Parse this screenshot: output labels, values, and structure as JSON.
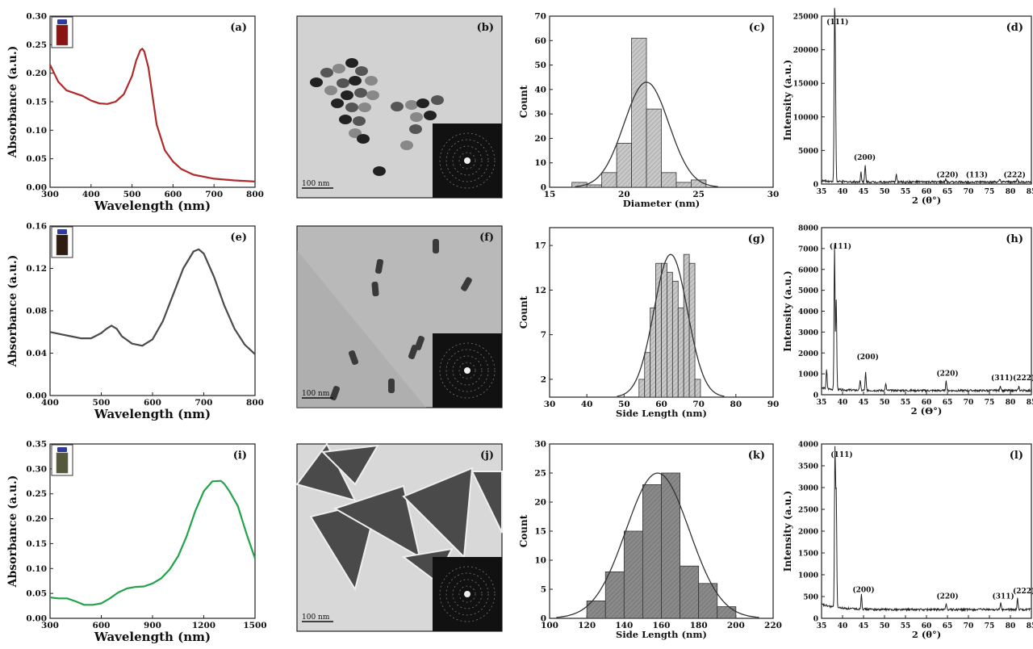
{
  "chart_data": [
    {
      "panel": "(a)",
      "type": "line",
      "color": "#b02a2a",
      "xlabel": "Wavelength (nm)",
      "ylabel": "Absorbance (a.u.)",
      "xlim": [
        300,
        800
      ],
      "ylim": [
        0,
        0.3
      ],
      "xticks": [
        300,
        400,
        500,
        600,
        700,
        800
      ],
      "yticks": [
        0,
        0.05,
        0.1,
        0.15,
        0.2,
        0.25,
        0.3
      ],
      "ytick_labels": [
        "0.00",
        "0.05",
        "0.10",
        "0.15",
        "0.20",
        "0.25",
        "0.30"
      ],
      "inset": "vial-red",
      "x": [
        300,
        320,
        340,
        360,
        380,
        400,
        420,
        440,
        460,
        480,
        500,
        510,
        520,
        525,
        530,
        540,
        550,
        560,
        580,
        600,
        620,
        650,
        700,
        750,
        800
      ],
      "y": [
        0.215,
        0.185,
        0.17,
        0.165,
        0.16,
        0.152,
        0.147,
        0.146,
        0.15,
        0.163,
        0.195,
        0.222,
        0.24,
        0.243,
        0.238,
        0.21,
        0.16,
        0.11,
        0.065,
        0.045,
        0.032,
        0.022,
        0.015,
        0.012,
        0.01
      ]
    },
    {
      "panel": "(b)",
      "type": "image",
      "scalebar": "100 nm",
      "style": "spheres"
    },
    {
      "panel": "(c)",
      "type": "histogram",
      "xlabel": "Diameter (nm)",
      "ylabel": "Count",
      "xlim": [
        15,
        30
      ],
      "ylim": [
        0,
        70
      ],
      "xticks": [
        15,
        20,
        25,
        30
      ],
      "yticks": [
        0,
        10,
        20,
        30,
        40,
        50,
        60,
        70
      ],
      "bin_width": 1,
      "bins": [
        17,
        18,
        19,
        20,
        21,
        22,
        23,
        24,
        25
      ],
      "counts": [
        2,
        1,
        6,
        18,
        61,
        32,
        6,
        2,
        3
      ],
      "fit_mean": 21.5,
      "fit_sd": 1.5,
      "fit_peak": 43
    },
    {
      "panel": "(d)",
      "type": "xrd",
      "xlabel": "2 (θ°)",
      "ylabel": "Intensity (a.u.)",
      "xlim": [
        35,
        85
      ],
      "ylim": [
        0,
        25000
      ],
      "xticks": [
        35,
        40,
        45,
        50,
        55,
        60,
        65,
        70,
        75,
        80,
        85
      ],
      "yticks": [
        0,
        5000,
        10000,
        15000,
        20000,
        25000
      ],
      "baseline": 300,
      "peaks": [
        [
          38.1,
          22500
        ],
        [
          38.3,
          13000
        ],
        [
          44.4,
          1500
        ],
        [
          45.4,
          2500
        ],
        [
          52.8,
          1200
        ],
        [
          64.6,
          400
        ],
        [
          77.5,
          350
        ],
        [
          81.6,
          400
        ]
      ],
      "labels": [
        {
          "text": "(111)",
          "x": 38.8,
          "y": 23800
        },
        {
          "text": "(200)",
          "x": 45.3,
          "y": 3600
        },
        {
          "text": "(220)",
          "x": 65,
          "y": 1000
        },
        {
          "text": "(113)",
          "x": 72,
          "y": 1000
        },
        {
          "text": "(222)",
          "x": 81,
          "y": 1000
        }
      ]
    },
    {
      "panel": "(e)",
      "type": "line",
      "color": "#4a4a4a",
      "xlabel": "Wavelength (nm)",
      "ylabel": "Absorbance (a.u.)",
      "xlim": [
        400,
        800
      ],
      "ylim": [
        0,
        0.16
      ],
      "xticks": [
        400,
        500,
        600,
        700,
        800
      ],
      "yticks": [
        0,
        0.04,
        0.08,
        0.12,
        0.16
      ],
      "ytick_labels": [
        "0.00",
        "0.04",
        "0.08",
        "0.12",
        "0.16"
      ],
      "inset": "vial-dark",
      "x": [
        400,
        420,
        440,
        460,
        480,
        500,
        510,
        520,
        530,
        540,
        560,
        580,
        600,
        620,
        640,
        660,
        680,
        690,
        700,
        720,
        740,
        760,
        780,
        800
      ],
      "y": [
        0.06,
        0.058,
        0.056,
        0.054,
        0.054,
        0.059,
        0.063,
        0.066,
        0.063,
        0.056,
        0.049,
        0.047,
        0.053,
        0.07,
        0.095,
        0.12,
        0.136,
        0.138,
        0.134,
        0.112,
        0.085,
        0.063,
        0.048,
        0.039
      ]
    },
    {
      "panel": "(f)",
      "type": "image",
      "scalebar": "100 nm",
      "style": "rods"
    },
    {
      "panel": "(g)",
      "type": "histogram",
      "xlabel": "Side Length (nm)",
      "ylabel": "Count",
      "xlim": [
        30,
        90
      ],
      "ylim": [
        0,
        19
      ],
      "xticks": [
        30,
        40,
        50,
        60,
        70,
        80,
        90
      ],
      "yticks": [
        2,
        7,
        12,
        17
      ],
      "bin_width": 1.5,
      "bins": [
        54.75,
        56.25,
        57.75,
        59.25,
        60.75,
        62.25,
        63.75,
        65.25,
        66.75,
        68.25,
        69.75
      ],
      "counts": [
        2,
        5,
        10,
        15,
        15,
        14,
        13,
        10,
        16,
        15,
        2
      ],
      "fit_mean": 62.5,
      "fit_sd": 4.5,
      "fit_peak": 16
    },
    {
      "panel": "(h)",
      "type": "xrd",
      "xlabel": "2 (Θ°)",
      "ylabel": "Intensity (a.u.)",
      "xlim": [
        35,
        85
      ],
      "ylim": [
        0,
        8000
      ],
      "xticks": [
        35,
        40,
        45,
        50,
        55,
        60,
        65,
        70,
        75,
        80,
        85
      ],
      "yticks": [
        0,
        1000,
        2000,
        3000,
        4000,
        5000,
        6000,
        7000,
        8000
      ],
      "baseline": 200,
      "peaks": [
        [
          36.2,
          900
        ],
        [
          38.1,
          6900
        ],
        [
          38.5,
          4300
        ],
        [
          44.2,
          500
        ],
        [
          45.5,
          850
        ],
        [
          50.3,
          300
        ],
        [
          64.7,
          450
        ],
        [
          77.6,
          250
        ],
        [
          82,
          200
        ]
      ],
      "labels": [
        {
          "text": "(111)",
          "x": 39.5,
          "y": 7000
        },
        {
          "text": "(200)",
          "x": 46,
          "y": 1700
        },
        {
          "text": "(220)",
          "x": 65,
          "y": 900
        },
        {
          "text": "(311)",
          "x": 78,
          "y": 700
        },
        {
          "text": "(222)",
          "x": 83.2,
          "y": 700
        }
      ]
    },
    {
      "panel": "(i)",
      "type": "line",
      "color": "#22a34a",
      "xlabel": "Wavelength (nm)",
      "ylabel": "Absorbance (a.u.)",
      "xlim": [
        300,
        1500
      ],
      "ylim": [
        0,
        0.35
      ],
      "xticks": [
        300,
        600,
        900,
        1200,
        1500
      ],
      "yticks": [
        0,
        0.05,
        0.1,
        0.15,
        0.2,
        0.25,
        0.3,
        0.35
      ],
      "ytick_labels": [
        "0.00",
        "0.05",
        "0.10",
        "0.15",
        "0.20",
        "0.25",
        "0.30",
        "0.35"
      ],
      "inset": "vial-green",
      "x": [
        300,
        350,
        400,
        450,
        500,
        550,
        600,
        650,
        700,
        750,
        800,
        850,
        900,
        950,
        1000,
        1050,
        1100,
        1150,
        1200,
        1250,
        1300,
        1320,
        1350,
        1400,
        1450,
        1500
      ],
      "y": [
        0.042,
        0.04,
        0.04,
        0.034,
        0.027,
        0.027,
        0.03,
        0.04,
        0.052,
        0.06,
        0.063,
        0.064,
        0.07,
        0.08,
        0.098,
        0.125,
        0.165,
        0.215,
        0.255,
        0.275,
        0.276,
        0.27,
        0.255,
        0.225,
        0.17,
        0.12
      ]
    },
    {
      "panel": "(j)",
      "type": "image",
      "scalebar": "100 nm",
      "style": "triangles"
    },
    {
      "panel": "(k)",
      "type": "histogram",
      "xlabel": "Side Length (nm)",
      "ylabel": "Count",
      "xlim": [
        100,
        220
      ],
      "ylim": [
        0,
        30
      ],
      "xticks": [
        100,
        120,
        140,
        160,
        180,
        200,
        220
      ],
      "yticks": [
        0,
        5,
        10,
        15,
        20,
        25,
        30
      ],
      "bin_width": 10,
      "bins": [
        125,
        135,
        145,
        155,
        165,
        175,
        185,
        195
      ],
      "counts": [
        3,
        8,
        15,
        23,
        25,
        9,
        6,
        2
      ],
      "fit_mean": 158,
      "fit_sd": 17,
      "fit_peak": 25
    },
    {
      "panel": "(l)",
      "type": "xrd",
      "xlabel": "2 (θ°)",
      "ylabel": "Intensity (a.u.)",
      "xlim": [
        35,
        85
      ],
      "ylim": [
        0,
        4000
      ],
      "xticks": [
        35,
        40,
        45,
        50,
        55,
        60,
        65,
        70,
        75,
        80,
        85
      ],
      "yticks": [
        0,
        500,
        1000,
        1500,
        2000,
        2500,
        3000,
        3500,
        4000
      ],
      "baseline": 200,
      "peaks": [
        [
          38.2,
          3600
        ],
        [
          38.5,
          2600
        ],
        [
          44.5,
          350
        ],
        [
          64.7,
          150
        ],
        [
          77.7,
          150
        ],
        [
          81.7,
          250
        ]
      ],
      "labels": [
        {
          "text": "(111)",
          "x": 39.8,
          "y": 3700
        },
        {
          "text": "(200)",
          "x": 45,
          "y": 600
        },
        {
          "text": "(220)",
          "x": 65,
          "y": 450
        },
        {
          "text": "(311)",
          "x": 78.3,
          "y": 450
        },
        {
          "text": "(222)",
          "x": 83.2,
          "y": 570
        }
      ]
    }
  ]
}
